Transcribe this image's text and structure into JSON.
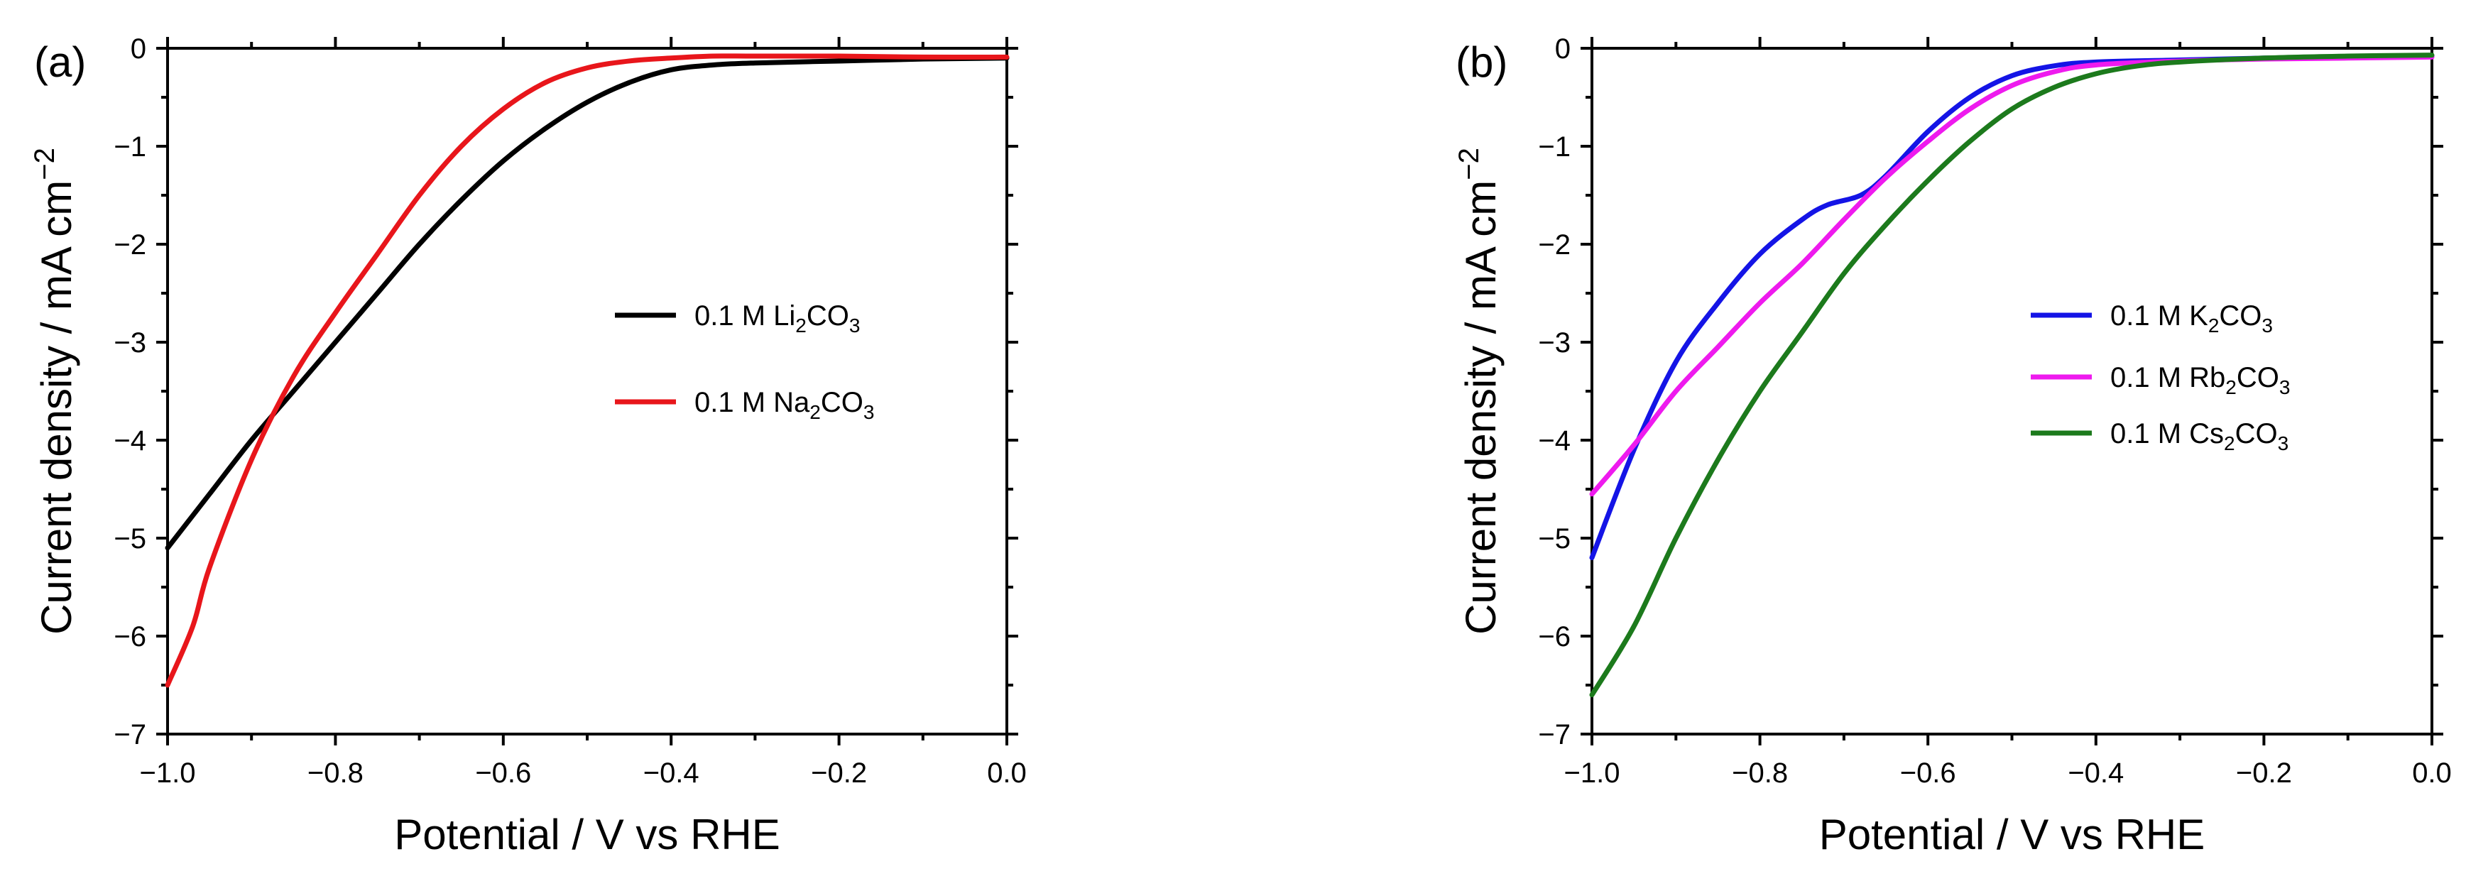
{
  "chart_data": [
    {
      "panel": "(a)",
      "type": "line",
      "xlabel": "Potential / V vs RHE",
      "ylabel": "Current density / mA cm",
      "ylabel_sup": "−2",
      "xlim": [
        -1.0,
        0.0
      ],
      "ylim": [
        -7,
        0
      ],
      "xticks": [
        "−1.0",
        "−0.8",
        "−0.6",
        "−0.4",
        "−0.2",
        "0.0"
      ],
      "xtick_values": [
        -1.0,
        -0.8,
        -0.6,
        -0.4,
        -0.2,
        0.0
      ],
      "yticks": [
        "0",
        "−1",
        "−2",
        "−3",
        "−4",
        "−5",
        "−6",
        "−7"
      ],
      "ytick_values": [
        0,
        -1,
        -2,
        -3,
        -4,
        -5,
        -6,
        -7
      ],
      "legend_position": "center-right",
      "series": [
        {
          "name": "0.1 M Li2CO3",
          "label_parts": [
            "0.1 M Li",
            "2",
            "CO",
            "3"
          ],
          "color": "#000000",
          "x": [
            -1.0,
            -0.95,
            -0.9,
            -0.85,
            -0.8,
            -0.75,
            -0.7,
            -0.65,
            -0.6,
            -0.55,
            -0.5,
            -0.45,
            -0.4,
            -0.35,
            -0.3,
            -0.2,
            -0.1,
            0.0
          ],
          "y": [
            -5.1,
            -4.55,
            -4.0,
            -3.5,
            -3.0,
            -2.5,
            -2.0,
            -1.55,
            -1.15,
            -0.82,
            -0.55,
            -0.35,
            -0.22,
            -0.17,
            -0.15,
            -0.13,
            -0.11,
            -0.1
          ]
        },
        {
          "name": "0.1 M Na2CO3",
          "label_parts": [
            "0.1 M Na",
            "2",
            "CO",
            "3"
          ],
          "color": "#e8161b",
          "x": [
            -1.0,
            -0.97,
            -0.95,
            -0.9,
            -0.85,
            -0.8,
            -0.75,
            -0.7,
            -0.65,
            -0.6,
            -0.55,
            -0.5,
            -0.45,
            -0.4,
            -0.35,
            -0.3,
            -0.2,
            -0.1,
            0.0
          ],
          "y": [
            -6.5,
            -5.9,
            -5.3,
            -4.2,
            -3.35,
            -2.7,
            -2.1,
            -1.5,
            -1.0,
            -0.62,
            -0.35,
            -0.2,
            -0.13,
            -0.1,
            -0.08,
            -0.08,
            -0.08,
            -0.09,
            -0.09
          ]
        }
      ]
    },
    {
      "panel": "(b)",
      "type": "line",
      "xlabel": "Potential / V vs RHE",
      "ylabel": "Current density / mA cm",
      "ylabel_sup": "−2",
      "xlim": [
        -1.0,
        0.0
      ],
      "ylim": [
        -7,
        0
      ],
      "xticks": [
        "−1.0",
        "−0.8",
        "−0.6",
        "−0.4",
        "−0.2",
        "0.0"
      ],
      "xtick_values": [
        -1.0,
        -0.8,
        -0.6,
        -0.4,
        -0.2,
        0.0
      ],
      "yticks": [
        "0",
        "−1",
        "−2",
        "−3",
        "−4",
        "−5",
        "−6",
        "−7"
      ],
      "ytick_values": [
        0,
        -1,
        -2,
        -3,
        -4,
        -5,
        -6,
        -7
      ],
      "legend_position": "center-right",
      "series": [
        {
          "name": "0.1 M K2CO3",
          "label_parts": [
            "0.1 M K",
            "2",
            "CO",
            "3"
          ],
          "color": "#1414e6",
          "x": [
            -1.0,
            -0.95,
            -0.9,
            -0.85,
            -0.8,
            -0.75,
            -0.72,
            -0.68,
            -0.65,
            -0.6,
            -0.55,
            -0.5,
            -0.45,
            -0.4,
            -0.3,
            -0.2,
            -0.1,
            0.0
          ],
          "y": [
            -5.2,
            -4.1,
            -3.2,
            -2.6,
            -2.1,
            -1.75,
            -1.6,
            -1.5,
            -1.3,
            -0.85,
            -0.5,
            -0.28,
            -0.18,
            -0.14,
            -0.12,
            -0.1,
            -0.09,
            -0.08
          ]
        },
        {
          "name": "0.1 M Rb2CO3",
          "label_parts": [
            "0.1 M Rb",
            "2",
            "CO",
            "3"
          ],
          "color": "#ee1aee",
          "x": [
            -1.0,
            -0.95,
            -0.9,
            -0.85,
            -0.8,
            -0.75,
            -0.7,
            -0.65,
            -0.6,
            -0.55,
            -0.5,
            -0.45,
            -0.4,
            -0.3,
            -0.2,
            -0.1,
            0.0
          ],
          "y": [
            -4.55,
            -4.05,
            -3.5,
            -3.05,
            -2.6,
            -2.2,
            -1.75,
            -1.32,
            -0.95,
            -0.62,
            -0.38,
            -0.24,
            -0.17,
            -0.13,
            -0.11,
            -0.1,
            -0.09
          ]
        },
        {
          "name": "0.1 M Cs2CO3",
          "label_parts": [
            "0.1 M Cs",
            "2",
            "CO",
            "3"
          ],
          "color": "#1c7a1c",
          "x": [
            -1.0,
            -0.95,
            -0.9,
            -0.85,
            -0.8,
            -0.75,
            -0.7,
            -0.65,
            -0.6,
            -0.55,
            -0.5,
            -0.45,
            -0.4,
            -0.35,
            -0.3,
            -0.2,
            -0.1,
            0.0
          ],
          "y": [
            -6.6,
            -5.9,
            -5.0,
            -4.2,
            -3.5,
            -2.9,
            -2.3,
            -1.8,
            -1.35,
            -0.95,
            -0.62,
            -0.4,
            -0.26,
            -0.18,
            -0.14,
            -0.1,
            -0.08,
            -0.07
          ]
        }
      ]
    }
  ]
}
